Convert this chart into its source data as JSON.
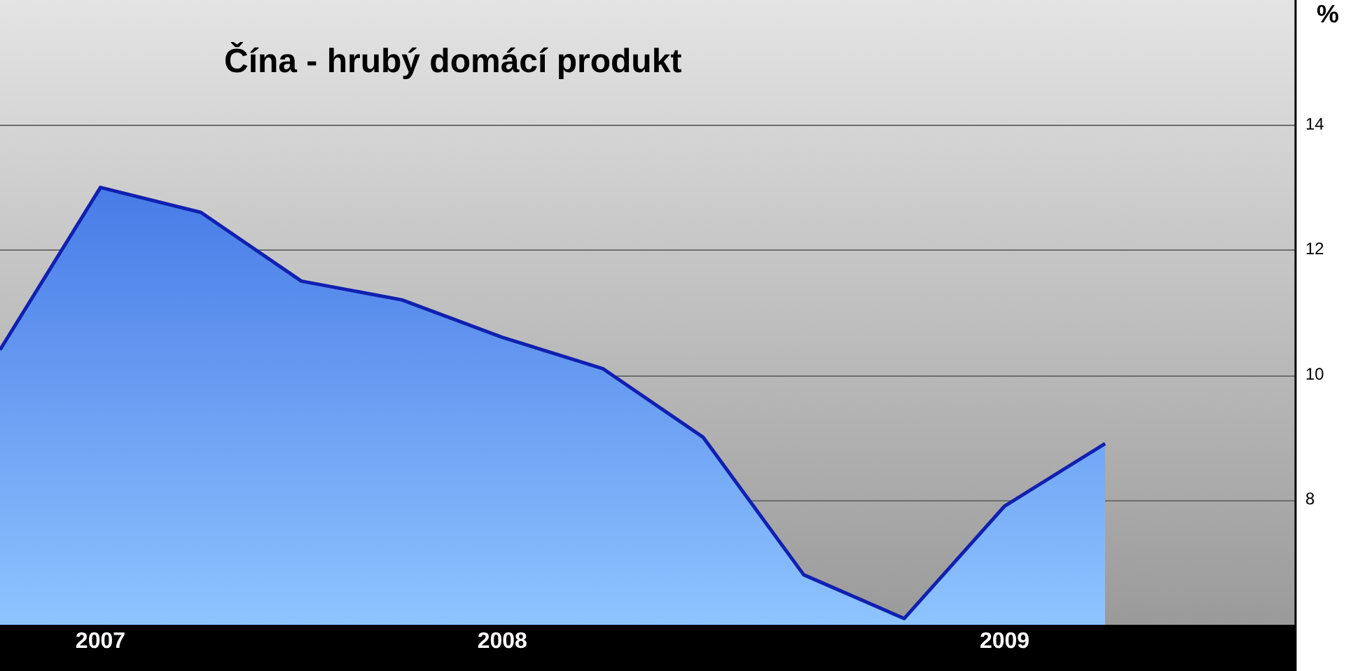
{
  "chart_data": {
    "type": "area",
    "title": "Čína - hrubý domácí produkt",
    "ylabel": "%",
    "categories": [
      null,
      "2007",
      null,
      null,
      null,
      "2008",
      null,
      null,
      null,
      null,
      "2009",
      null
    ],
    "series": [
      {
        "color": "#1020b0",
        "values": [
          10.4,
          13.0,
          12.6,
          11.5,
          11.2,
          10.6,
          10.1,
          9.0,
          6.8,
          6.1,
          7.9,
          8.9
        ]
      }
    ],
    "ylim": [
      6,
      16
    ],
    "yticks": [
      8,
      10,
      12,
      14
    ],
    "grid": "y",
    "legend": false
  }
}
